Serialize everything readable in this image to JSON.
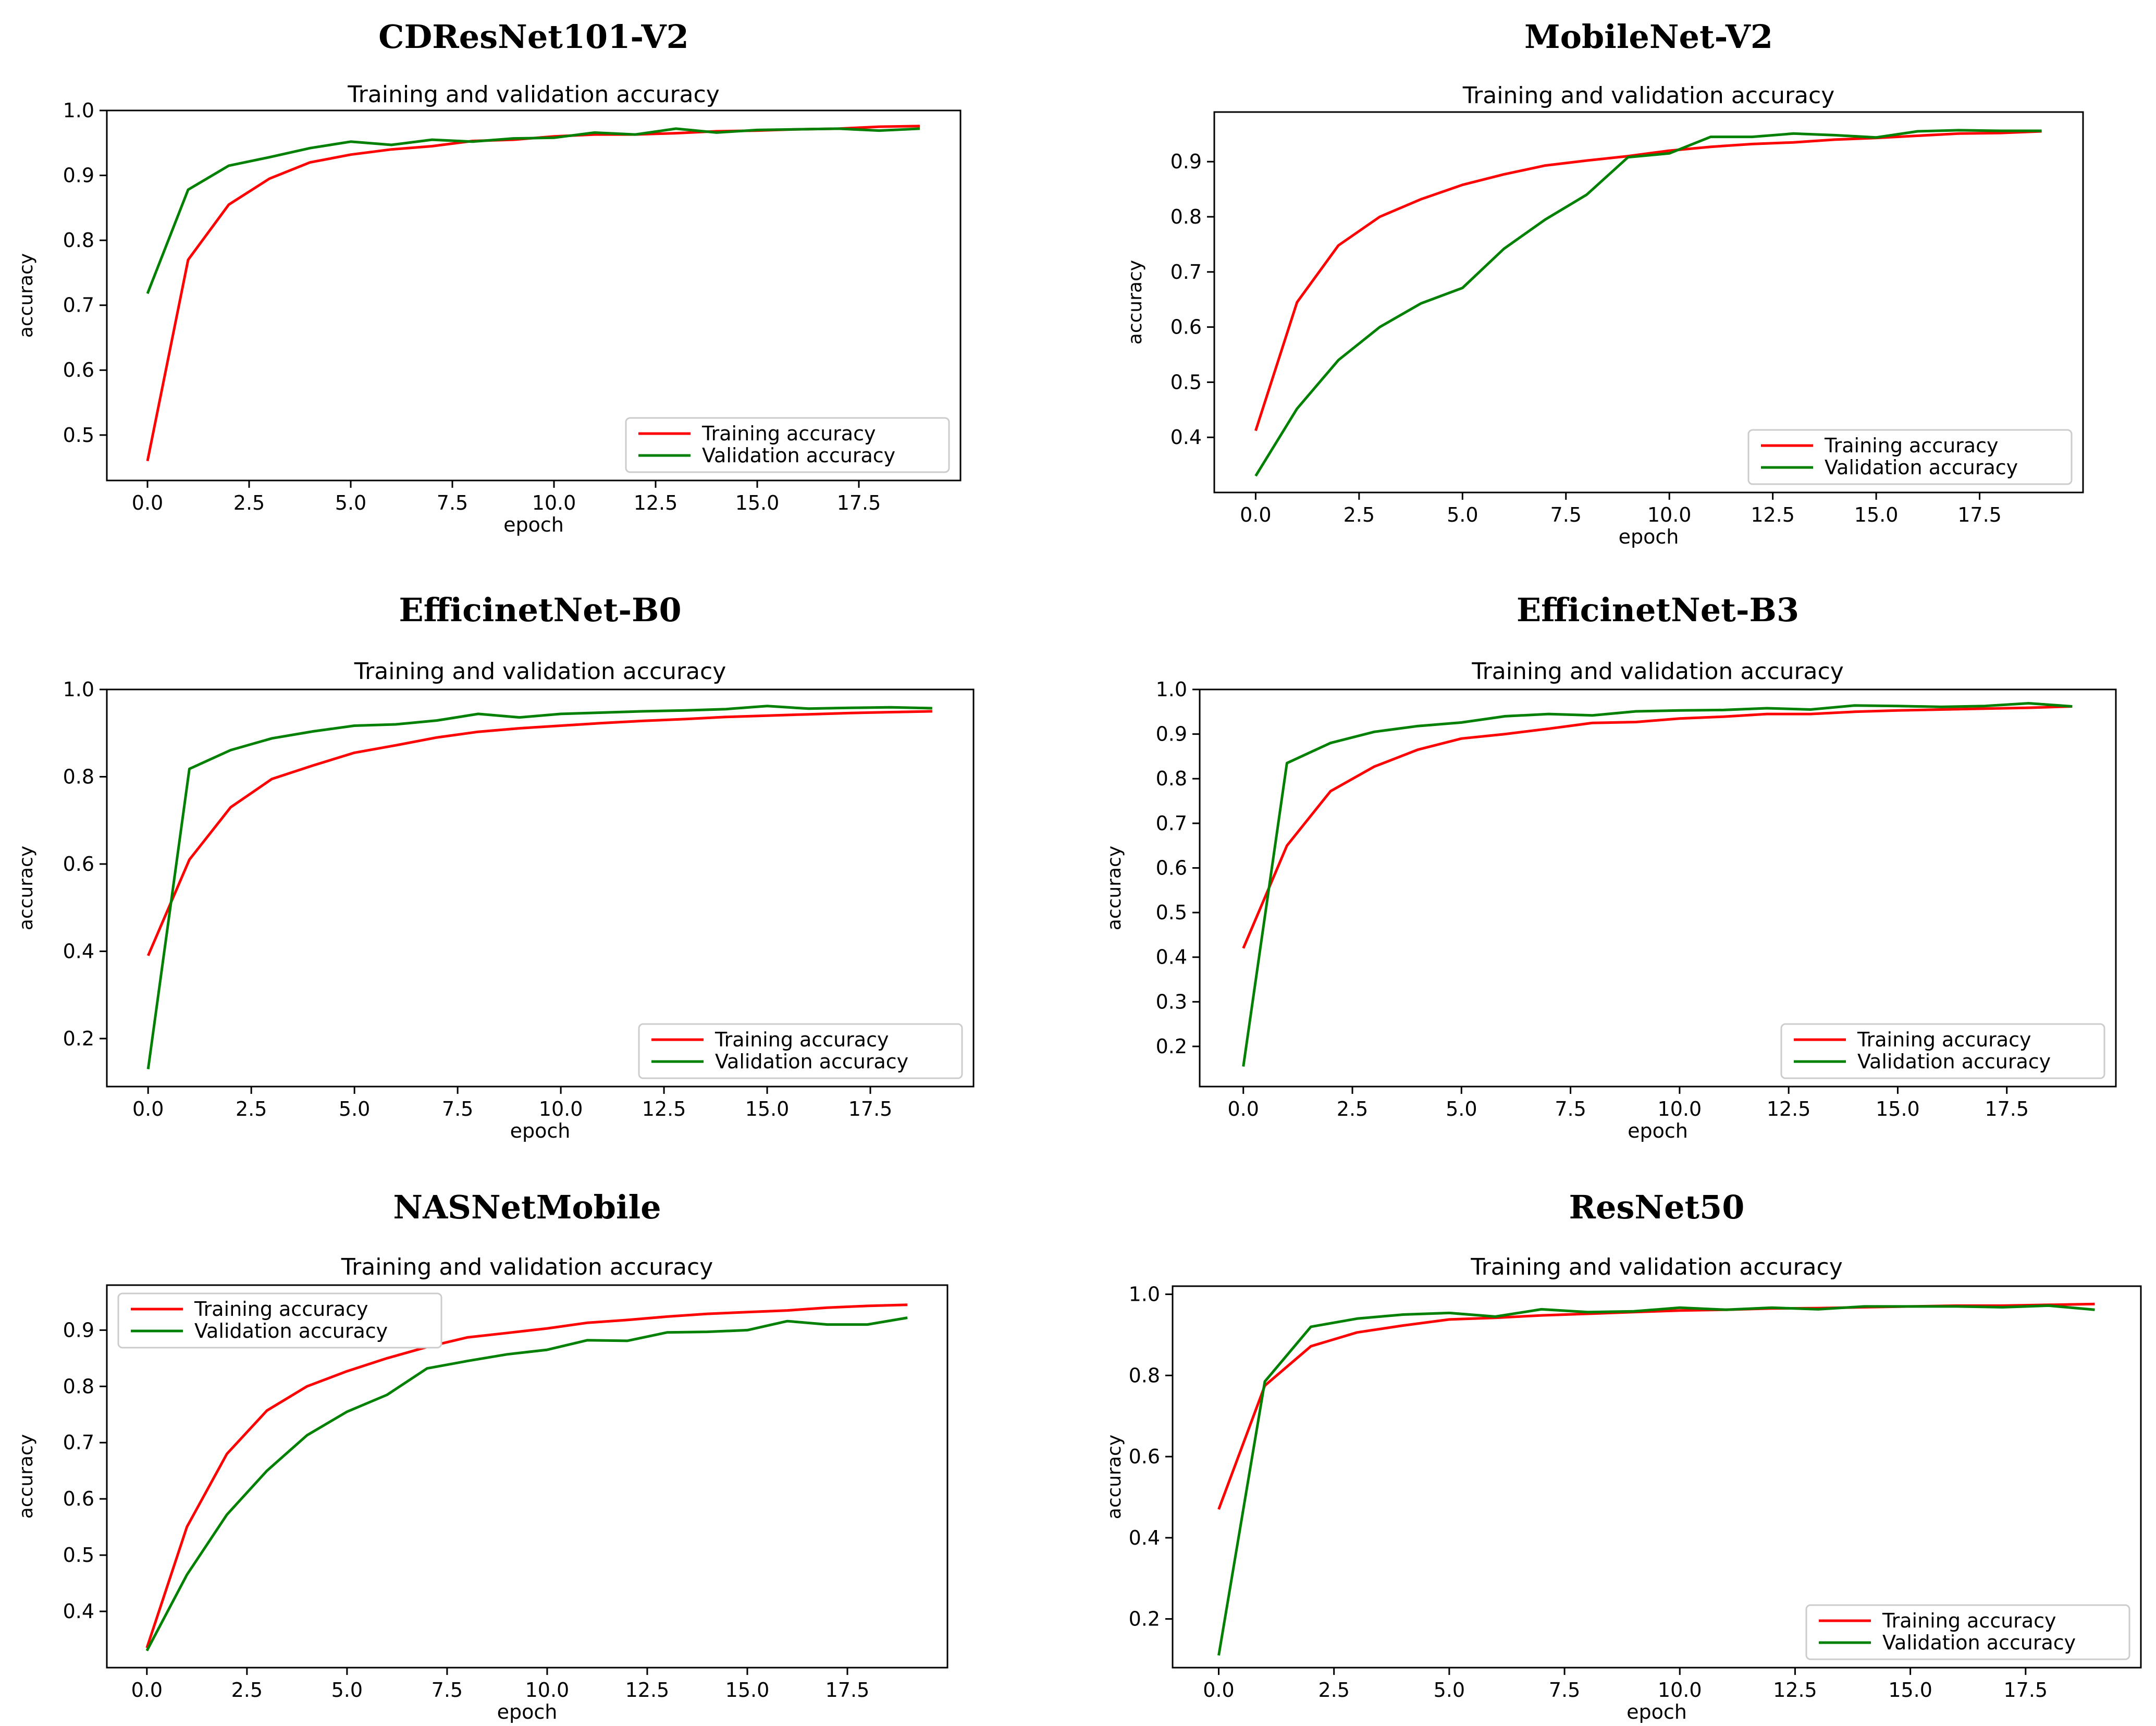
{
  "colors": {
    "training": "#ff0000",
    "validation": "#008000"
  },
  "chart_data": [
    {
      "type": "line",
      "model": "CDResNet101-V2",
      "title": "Training and validation accuracy",
      "xlabel": "epoch",
      "ylabel": "accuracy",
      "xlim": [
        -1,
        20
      ],
      "ylim": [
        0.43,
        1.0
      ],
      "xticks": [
        "0.0",
        "2.5",
        "5.0",
        "7.5",
        "10.0",
        "12.5",
        "15.0",
        "17.5"
      ],
      "xtick_values": [
        0,
        2.5,
        5,
        7.5,
        10,
        12.5,
        15,
        17.5
      ],
      "yticks": [
        "0.5",
        "0.6",
        "0.7",
        "0.8",
        "0.9",
        "1.0"
      ],
      "ytick_values": [
        0.5,
        0.6,
        0.7,
        0.8,
        0.9,
        1.0
      ],
      "legend_position": "lower-right",
      "x": [
        0,
        1,
        2,
        3,
        4,
        5,
        6,
        7,
        8,
        9,
        10,
        11,
        12,
        13,
        14,
        15,
        16,
        17,
        18,
        19
      ],
      "series": [
        {
          "name": "Training accuracy",
          "color": "#ff0000",
          "values": [
            0.46,
            0.77,
            0.855,
            0.895,
            0.92,
            0.932,
            0.94,
            0.945,
            0.953,
            0.955,
            0.96,
            0.963,
            0.963,
            0.965,
            0.968,
            0.969,
            0.971,
            0.972,
            0.975,
            0.976
          ]
        },
        {
          "name": "Validation accuracy",
          "color": "#008000",
          "values": [
            0.718,
            0.878,
            0.915,
            0.928,
            0.942,
            0.952,
            0.947,
            0.955,
            0.952,
            0.957,
            0.958,
            0.966,
            0.963,
            0.972,
            0.966,
            0.97,
            0.971,
            0.972,
            0.969,
            0.972
          ]
        }
      ]
    },
    {
      "type": "line",
      "model": "MobileNet-V2",
      "title": "Training and validation accuracy",
      "xlabel": "epoch",
      "ylabel": "accuracy",
      "xlim": [
        -1,
        20
      ],
      "ylim": [
        0.3,
        0.99
      ],
      "xticks": [
        "0.0",
        "2.5",
        "5.0",
        "7.5",
        "10.0",
        "12.5",
        "15.0",
        "17.5"
      ],
      "xtick_values": [
        0,
        2.5,
        5,
        7.5,
        10,
        12.5,
        15,
        17.5
      ],
      "yticks": [
        "0.4",
        "0.5",
        "0.6",
        "0.7",
        "0.8",
        "0.9"
      ],
      "ytick_values": [
        0.4,
        0.5,
        0.6,
        0.7,
        0.8,
        0.9
      ],
      "legend_position": "lower-right",
      "x": [
        0,
        1,
        2,
        3,
        4,
        5,
        6,
        7,
        8,
        9,
        10,
        11,
        12,
        13,
        14,
        15,
        16,
        17,
        18,
        19
      ],
      "series": [
        {
          "name": "Training accuracy",
          "color": "#ff0000",
          "values": [
            0.412,
            0.645,
            0.748,
            0.8,
            0.832,
            0.858,
            0.877,
            0.893,
            0.902,
            0.91,
            0.92,
            0.927,
            0.932,
            0.935,
            0.94,
            0.943,
            0.947,
            0.951,
            0.952,
            0.955
          ]
        },
        {
          "name": "Validation accuracy",
          "color": "#008000",
          "values": [
            0.33,
            0.452,
            0.54,
            0.6,
            0.643,
            0.671,
            0.742,
            0.795,
            0.84,
            0.908,
            0.915,
            0.945,
            0.945,
            0.951,
            0.948,
            0.944,
            0.955,
            0.957,
            0.956,
            0.956
          ]
        }
      ]
    },
    {
      "type": "line",
      "model": "EfficinetNet-B0",
      "title": "Training and validation accuracy",
      "xlabel": "epoch",
      "ylabel": "accuracy",
      "xlim": [
        -1,
        20
      ],
      "ylim": [
        0.09,
        1.0
      ],
      "xticks": [
        "0.0",
        "2.5",
        "5.0",
        "7.5",
        "10.0",
        "12.5",
        "15.0",
        "17.5"
      ],
      "xtick_values": [
        0,
        2.5,
        5,
        7.5,
        10,
        12.5,
        15,
        17.5
      ],
      "yticks": [
        "0.2",
        "0.4",
        "0.6",
        "0.8",
        "1.0"
      ],
      "ytick_values": [
        0.2,
        0.4,
        0.6,
        0.8,
        1.0
      ],
      "legend_position": "lower-right",
      "x": [
        0,
        1,
        2,
        3,
        4,
        5,
        6,
        7,
        8,
        9,
        10,
        11,
        12,
        13,
        14,
        15,
        16,
        17,
        18,
        19
      ],
      "series": [
        {
          "name": "Training accuracy",
          "color": "#ff0000",
          "values": [
            0.39,
            0.61,
            0.73,
            0.795,
            0.826,
            0.855,
            0.872,
            0.89,
            0.903,
            0.911,
            0.917,
            0.923,
            0.928,
            0.932,
            0.937,
            0.94,
            0.943,
            0.946,
            0.948,
            0.95
          ]
        },
        {
          "name": "Validation accuracy",
          "color": "#008000",
          "values": [
            0.13,
            0.818,
            0.861,
            0.888,
            0.904,
            0.917,
            0.92,
            0.929,
            0.944,
            0.936,
            0.944,
            0.947,
            0.95,
            0.952,
            0.955,
            0.962,
            0.956,
            0.958,
            0.959,
            0.957
          ]
        }
      ]
    },
    {
      "type": "line",
      "model": "EfficinetNet-B3",
      "title": "Training and validation accuracy",
      "xlabel": "epoch",
      "ylabel": "accuracy",
      "xlim": [
        -1,
        20
      ],
      "ylim": [
        0.11,
        1.0
      ],
      "xticks": [
        "0.0",
        "2.5",
        "5.0",
        "7.5",
        "10.0",
        "12.5",
        "15.0",
        "17.5"
      ],
      "xtick_values": [
        0,
        2.5,
        5,
        7.5,
        10,
        12.5,
        15,
        17.5
      ],
      "yticks": [
        "0.2",
        "0.3",
        "0.4",
        "0.5",
        "0.6",
        "0.7",
        "0.8",
        "0.9",
        "1.0"
      ],
      "ytick_values": [
        0.2,
        0.3,
        0.4,
        0.5,
        0.6,
        0.7,
        0.8,
        0.9,
        1.0
      ],
      "legend_position": "lower-right",
      "x": [
        0,
        1,
        2,
        3,
        4,
        5,
        6,
        7,
        8,
        9,
        10,
        11,
        12,
        13,
        14,
        15,
        16,
        17,
        18,
        19
      ],
      "series": [
        {
          "name": "Training accuracy",
          "color": "#ff0000",
          "values": [
            0.42,
            0.65,
            0.772,
            0.827,
            0.865,
            0.89,
            0.9,
            0.912,
            0.925,
            0.927,
            0.935,
            0.939,
            0.945,
            0.945,
            0.95,
            0.953,
            0.955,
            0.957,
            0.959,
            0.962
          ]
        },
        {
          "name": "Validation accuracy",
          "color": "#008000",
          "values": [
            0.155,
            0.835,
            0.88,
            0.905,
            0.918,
            0.926,
            0.94,
            0.945,
            0.942,
            0.951,
            0.953,
            0.954,
            0.958,
            0.955,
            0.964,
            0.963,
            0.961,
            0.963,
            0.969,
            0.962
          ]
        }
      ]
    },
    {
      "type": "line",
      "model": "NASNetMobile",
      "title": "Training and validation accuracy",
      "xlabel": "epoch",
      "ylabel": "accuracy",
      "xlim": [
        -1,
        20
      ],
      "ylim": [
        0.3,
        0.98
      ],
      "xticks": [
        "0.0",
        "2.5",
        "5.0",
        "7.5",
        "10.0",
        "12.5",
        "15.0",
        "17.5"
      ],
      "xtick_values": [
        0,
        2.5,
        5,
        7.5,
        10,
        12.5,
        15,
        17.5
      ],
      "yticks": [
        "0.4",
        "0.5",
        "0.6",
        "0.7",
        "0.8",
        "0.9"
      ],
      "ytick_values": [
        0.4,
        0.5,
        0.6,
        0.7,
        0.8,
        0.9
      ],
      "legend_position": "upper-left",
      "x": [
        0,
        1,
        2,
        3,
        4,
        5,
        6,
        7,
        8,
        9,
        10,
        11,
        12,
        13,
        14,
        15,
        16,
        17,
        18,
        19
      ],
      "series": [
        {
          "name": "Training accuracy",
          "color": "#ff0000",
          "values": [
            0.335,
            0.55,
            0.68,
            0.757,
            0.8,
            0.827,
            0.85,
            0.87,
            0.887,
            0.895,
            0.903,
            0.913,
            0.918,
            0.924,
            0.929,
            0.932,
            0.935,
            0.94,
            0.943,
            0.945
          ]
        },
        {
          "name": "Validation accuracy",
          "color": "#008000",
          "values": [
            0.33,
            0.465,
            0.572,
            0.65,
            0.713,
            0.755,
            0.785,
            0.832,
            0.845,
            0.857,
            0.865,
            0.882,
            0.881,
            0.896,
            0.897,
            0.9,
            0.916,
            0.91,
            0.91,
            0.922
          ]
        }
      ]
    },
    {
      "type": "line",
      "model": "ResNet50",
      "title": "Training and validation accuracy",
      "xlabel": "epoch",
      "ylabel": "accuracy",
      "xlim": [
        -1,
        20
      ],
      "ylim": [
        0.08,
        1.02
      ],
      "xticks": [
        "0.0",
        "2.5",
        "5.0",
        "7.5",
        "10.0",
        "12.5",
        "15.0",
        "17.5"
      ],
      "xtick_values": [
        0,
        2.5,
        5,
        7.5,
        10,
        12.5,
        15,
        17.5
      ],
      "yticks": [
        "0.2",
        "0.4",
        "0.6",
        "0.8",
        "1.0"
      ],
      "ytick_values": [
        0.2,
        0.4,
        0.6,
        0.8,
        1.0
      ],
      "legend_position": "lower-right",
      "x": [
        0,
        1,
        2,
        3,
        4,
        5,
        6,
        7,
        8,
        9,
        10,
        11,
        12,
        13,
        14,
        15,
        16,
        17,
        18,
        19
      ],
      "series": [
        {
          "name": "Training accuracy",
          "color": "#ff0000",
          "values": [
            0.47,
            0.775,
            0.872,
            0.906,
            0.923,
            0.938,
            0.942,
            0.948,
            0.952,
            0.956,
            0.96,
            0.962,
            0.965,
            0.966,
            0.968,
            0.97,
            0.972,
            0.972,
            0.974,
            0.976
          ]
        },
        {
          "name": "Validation accuracy",
          "color": "#008000",
          "values": [
            0.11,
            0.785,
            0.92,
            0.94,
            0.95,
            0.954,
            0.945,
            0.963,
            0.956,
            0.958,
            0.967,
            0.962,
            0.967,
            0.963,
            0.97,
            0.97,
            0.97,
            0.968,
            0.972,
            0.962
          ]
        }
      ]
    }
  ]
}
